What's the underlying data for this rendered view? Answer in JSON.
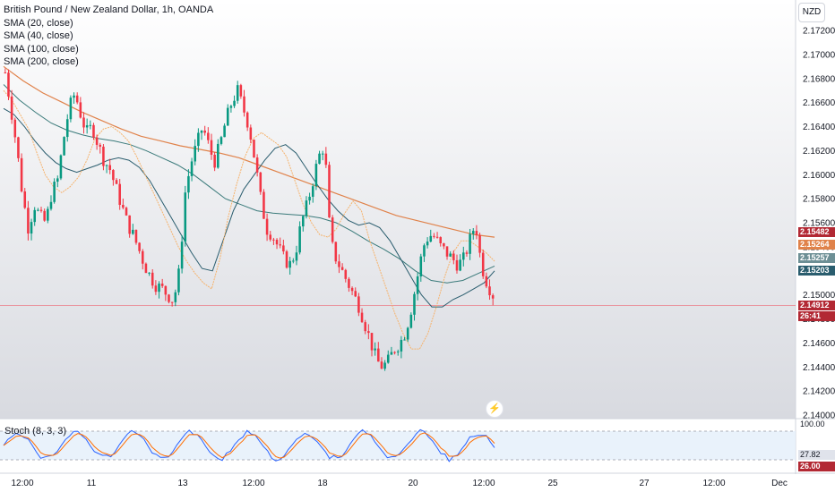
{
  "header": {
    "title": "British Pound / New Zealand Dollar, 1h, OANDA",
    "indicators": [
      "SMA (20, close)",
      "SMA (40, close)",
      "SMA (100, close)",
      "SMA (200, close)"
    ]
  },
  "currency_button": "NZD",
  "price_tags": {
    "tag1": "2.15482",
    "tag2": "2.15264",
    "tag3": "2.15257",
    "tag4": "2.15203",
    "last_price": "2.14912",
    "countdown": "26:41"
  },
  "stoch": {
    "label": "Stoch (8, 3, 3)",
    "upper_label": "100.00",
    "tag_k": "27.82",
    "tag_d": "26.00"
  },
  "colors": {
    "up": "#089981",
    "down": "#f23645",
    "sma20": "#f6b26b",
    "sma40": "#2a5d6e",
    "sma100": "#3a7a7a",
    "sma200": "#e0824a",
    "stoch_k": "#2962ff",
    "stoch_d": "#ff6d00",
    "tag_red": "#b22833",
    "tag_orange": "#e0824a",
    "tag_teal_dark": "#2a5d6e",
    "tag_teal": "#6d8f95"
  },
  "chart_data": {
    "type": "candlestick",
    "title": "British Pound / New Zealand Dollar, 1h, OANDA",
    "y_axis": {
      "ticks": [
        "2.17200",
        "2.17000",
        "2.16800",
        "2.16600",
        "2.16400",
        "2.16200",
        "2.16000",
        "2.15800",
        "2.15600",
        "2.15400",
        "2.15200",
        "2.15000",
        "2.14800",
        "2.14600",
        "2.14400",
        "2.14200",
        "2.14000"
      ],
      "range": [
        2.14,
        2.173
      ]
    },
    "x_axis": {
      "ticks": [
        "12:00",
        "11",
        "13",
        "12:00",
        "18",
        "20",
        "12:00",
        "25",
        "27",
        "12:00",
        "Dec"
      ]
    },
    "close_path": [
      2.1685,
      2.1655,
      2.1622,
      2.1582,
      2.1555,
      2.1575,
      2.1565,
      2.156,
      2.1585,
      2.1595,
      2.1628,
      2.1655,
      2.1668,
      2.165,
      2.1635,
      2.164,
      2.1625,
      2.1612,
      2.1605,
      2.159,
      2.1575,
      2.156,
      2.155,
      2.1538,
      2.1525,
      2.1515,
      2.1508,
      2.1505,
      2.15,
      2.1495,
      2.152,
      2.1585,
      2.161,
      2.1625,
      2.164,
      2.1625,
      2.161,
      2.1625,
      2.1645,
      2.166,
      2.167,
      2.1655,
      2.164,
      2.1612,
      2.158,
      2.1555,
      2.155,
      2.154,
      2.153,
      2.1525,
      2.1535,
      2.156,
      2.1575,
      2.1595,
      2.1615,
      2.1625,
      2.1545,
      2.153,
      2.152,
      2.151,
      2.15,
      2.149,
      2.1475,
      2.146,
      2.1445,
      2.144,
      2.1445,
      2.1455,
      2.146,
      2.147,
      2.149,
      2.1515,
      2.154,
      2.155,
      2.1548,
      2.154,
      2.1535,
      2.153,
      2.1525,
      2.153,
      2.1545,
      2.156,
      2.1525,
      2.151,
      2.15
    ],
    "sma20": [
      2.167,
      2.1662,
      2.165,
      2.1638,
      2.1618,
      2.16,
      2.159,
      2.1585,
      2.159,
      2.1598,
      2.1612,
      2.163,
      2.1638,
      2.164,
      2.1635,
      2.1628,
      2.1615,
      2.16,
      2.1585,
      2.157,
      2.1555,
      2.154,
      2.1528,
      2.1518,
      2.151,
      2.1505,
      2.153,
      2.1565,
      2.1592,
      2.1615,
      2.163,
      2.1635,
      2.163,
      2.1625,
      2.1615,
      2.1595,
      2.1575,
      2.156,
      2.155,
      2.1548,
      2.1555,
      2.1568,
      2.1578,
      2.157,
      2.1545,
      2.1525,
      2.1505,
      2.1485,
      2.1468,
      2.1455,
      2.1455,
      2.1468,
      2.149,
      2.1515,
      2.1535,
      2.1545,
      2.1545,
      2.154,
      2.1535,
      2.1528
    ],
    "sma40": [
      2.1655,
      2.165,
      2.164,
      2.1628,
      2.1618,
      2.161,
      2.1605,
      2.1602,
      2.1605,
      2.1608,
      2.1612,
      2.1614,
      2.1612,
      2.1606,
      2.1595,
      2.158,
      2.1565,
      2.155,
      2.1535,
      2.1522,
      2.152,
      2.1545,
      2.157,
      2.1588,
      2.16,
      2.1612,
      2.1622,
      2.1625,
      2.1618,
      2.1605,
      2.1592,
      2.158,
      2.157,
      2.1562,
      2.1558,
      2.156,
      2.1556,
      2.1545,
      2.153,
      2.1515,
      2.15,
      2.149,
      2.149,
      2.1496,
      2.15,
      2.1505,
      2.151,
      2.152
    ],
    "sma100": [
      2.1675,
      2.1662,
      2.1652,
      2.1643,
      2.1637,
      2.1633,
      2.163,
      2.1628,
      2.1625,
      2.162,
      2.1614,
      2.1608,
      2.16,
      2.159,
      2.158,
      2.1575,
      2.157,
      2.1568,
      2.1567,
      2.1566,
      2.1564,
      2.156,
      2.1553,
      2.1545,
      2.1538,
      2.153,
      2.152,
      2.1512,
      2.151,
      2.1512,
      2.1518,
      2.1524
    ],
    "sma200": [
      2.169,
      2.1678,
      2.1668,
      2.166,
      2.1652,
      2.1645,
      2.1638,
      2.1632,
      2.1628,
      2.1624,
      2.1621,
      2.1618,
      2.1614,
      2.1608,
      2.1602,
      2.1596,
      2.159,
      2.1584,
      2.1578,
      2.1572,
      2.1566,
      2.1562,
      2.1558,
      2.1554,
      2.155,
      2.1548
    ],
    "last_price": 2.14912,
    "stoch_range": [
      0,
      100
    ]
  }
}
